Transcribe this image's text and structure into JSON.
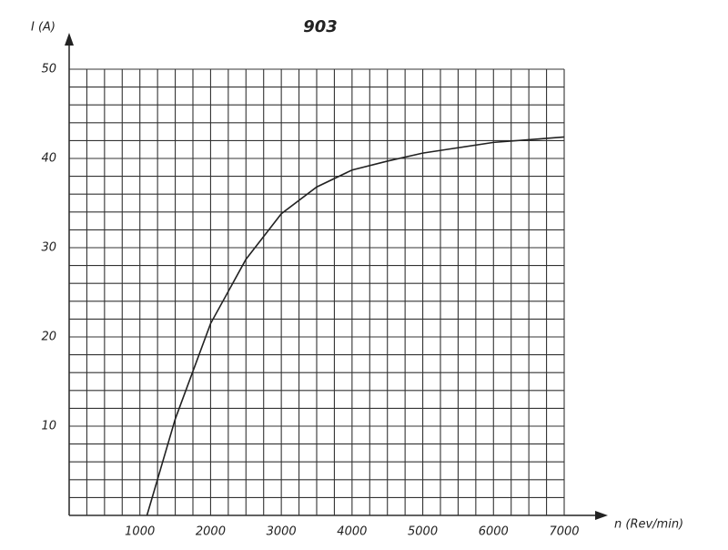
{
  "chart_data": {
    "type": "line",
    "title": "903",
    "x_label": "n (Rev/min)",
    "y_label": "I (A)",
    "x": [
      1100,
      1500,
      2000,
      2500,
      3000,
      3500,
      4000,
      4500,
      5000,
      5500,
      6000,
      6500,
      7000
    ],
    "series": [
      {
        "color": "#222222",
        "values": [
          0,
          10.8,
          21.5,
          28.7,
          33.8,
          36.8,
          38.7,
          39.7,
          40.6,
          41.2,
          41.8,
          42.1,
          42.4
        ]
      }
    ],
    "xlim": [
      0,
      7000
    ],
    "ylim": [
      0,
      50
    ],
    "xticks": [
      1000,
      2000,
      3000,
      4000,
      5000,
      6000,
      7000
    ],
    "yticks": [
      10,
      20,
      30,
      40,
      50
    ],
    "x_grid": [
      0,
      250,
      500,
      750,
      1000,
      1250,
      1500,
      1750,
      2000,
      2250,
      2500,
      2750,
      3000,
      3250,
      3500,
      3750,
      4000,
      4250,
      4500,
      4750,
      5000,
      5250,
      5500,
      5750,
      6000,
      6250,
      6500,
      6750,
      7000
    ],
    "y_grid": [
      0,
      2,
      4,
      6,
      8,
      10,
      12,
      14,
      16,
      18,
      20,
      22,
      24,
      26,
      28,
      30,
      32,
      34,
      36,
      38,
      40,
      42,
      44,
      46,
      48,
      50
    ],
    "grid": true
  }
}
